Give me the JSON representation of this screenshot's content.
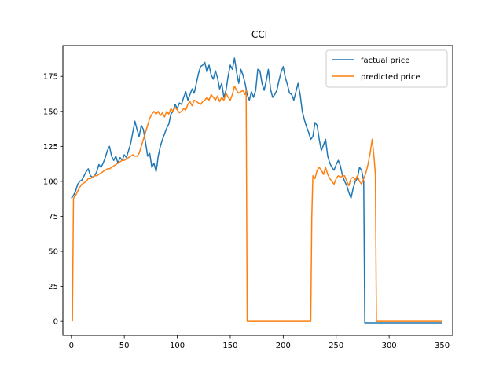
{
  "chart_data": {
    "type": "line",
    "title": "CCI",
    "xlabel": "",
    "ylabel": "",
    "xlim": [
      -8,
      360
    ],
    "ylim": [
      -10,
      197
    ],
    "xticks": [
      0,
      50,
      100,
      150,
      200,
      250,
      300,
      350
    ],
    "yticks": [
      0,
      25,
      50,
      75,
      100,
      125,
      150,
      175
    ],
    "grid": false,
    "legend_position": "upper right",
    "series": [
      {
        "name": "factual price",
        "color": "#1f77b4",
        "points": [
          [
            0,
            88
          ],
          [
            2,
            90
          ],
          [
            4,
            93
          ],
          [
            6,
            98
          ],
          [
            8,
            100
          ],
          [
            10,
            101
          ],
          [
            12,
            104
          ],
          [
            14,
            107
          ],
          [
            16,
            109
          ],
          [
            18,
            104
          ],
          [
            20,
            103
          ],
          [
            22,
            104
          ],
          [
            24,
            107
          ],
          [
            26,
            112
          ],
          [
            28,
            110
          ],
          [
            30,
            113
          ],
          [
            32,
            117
          ],
          [
            34,
            122
          ],
          [
            36,
            125
          ],
          [
            38,
            118
          ],
          [
            40,
            115
          ],
          [
            42,
            118
          ],
          [
            44,
            113
          ],
          [
            46,
            117
          ],
          [
            48,
            115
          ],
          [
            50,
            119
          ],
          [
            52,
            117
          ],
          [
            54,
            122
          ],
          [
            56,
            127
          ],
          [
            58,
            135
          ],
          [
            60,
            143
          ],
          [
            62,
            137
          ],
          [
            64,
            132
          ],
          [
            66,
            140
          ],
          [
            68,
            137
          ],
          [
            70,
            128
          ],
          [
            72,
            118
          ],
          [
            74,
            120
          ],
          [
            76,
            110
          ],
          [
            78,
            113
          ],
          [
            80,
            107
          ],
          [
            81,
            112
          ],
          [
            82,
            118
          ],
          [
            84,
            125
          ],
          [
            86,
            130
          ],
          [
            88,
            134
          ],
          [
            90,
            138
          ],
          [
            92,
            141
          ],
          [
            94,
            148
          ],
          [
            96,
            150
          ],
          [
            98,
            155
          ],
          [
            100,
            152
          ],
          [
            102,
            156
          ],
          [
            104,
            155
          ],
          [
            106,
            160
          ],
          [
            108,
            164
          ],
          [
            110,
            158
          ],
          [
            112,
            162
          ],
          [
            114,
            166
          ],
          [
            116,
            163
          ],
          [
            118,
            170
          ],
          [
            120,
            177
          ],
          [
            122,
            182
          ],
          [
            124,
            183
          ],
          [
            126,
            185
          ],
          [
            128,
            178
          ],
          [
            130,
            183
          ],
          [
            132,
            176
          ],
          [
            134,
            173
          ],
          [
            136,
            179
          ],
          [
            138,
            174
          ],
          [
            140,
            166
          ],
          [
            142,
            170
          ],
          [
            144,
            160
          ],
          [
            146,
            165
          ],
          [
            148,
            175
          ],
          [
            150,
            183
          ],
          [
            152,
            180
          ],
          [
            154,
            188
          ],
          [
            156,
            178
          ],
          [
            158,
            170
          ],
          [
            160,
            180
          ],
          [
            162,
            176
          ],
          [
            164,
            170
          ],
          [
            166,
            162
          ],
          [
            168,
            158
          ],
          [
            170,
            164
          ],
          [
            172,
            160
          ],
          [
            174,
            165
          ],
          [
            176,
            180
          ],
          [
            178,
            179
          ],
          [
            180,
            170
          ],
          [
            182,
            165
          ],
          [
            184,
            172
          ],
          [
            186,
            180
          ],
          [
            188,
            166
          ],
          [
            190,
            160
          ],
          [
            192,
            162
          ],
          [
            194,
            165
          ],
          [
            196,
            172
          ],
          [
            198,
            178
          ],
          [
            200,
            182
          ],
          [
            202,
            174
          ],
          [
            204,
            169
          ],
          [
            206,
            163
          ],
          [
            208,
            162
          ],
          [
            210,
            158
          ],
          [
            212,
            164
          ],
          [
            214,
            170
          ],
          [
            216,
            162
          ],
          [
            218,
            150
          ],
          [
            220,
            144
          ],
          [
            222,
            139
          ],
          [
            224,
            135
          ],
          [
            226,
            130
          ],
          [
            228,
            132
          ],
          [
            230,
            142
          ],
          [
            232,
            140
          ],
          [
            234,
            130
          ],
          [
            236,
            122
          ],
          [
            238,
            126
          ],
          [
            240,
            130
          ],
          [
            242,
            118
          ],
          [
            244,
            113
          ],
          [
            246,
            110
          ],
          [
            248,
            108
          ],
          [
            250,
            112
          ],
          [
            252,
            115
          ],
          [
            254,
            111
          ],
          [
            256,
            104
          ],
          [
            258,
            100
          ],
          [
            260,
            97
          ],
          [
            262,
            92
          ],
          [
            264,
            88
          ],
          [
            266,
            95
          ],
          [
            268,
            100
          ],
          [
            270,
            102
          ],
          [
            272,
            110
          ],
          [
            274,
            108
          ],
          [
            276,
            100
          ],
          [
            277,
            -1
          ],
          [
            350,
            -1
          ]
        ]
      },
      {
        "name": "predicted price",
        "color": "#ff7f0e",
        "points": [
          [
            1,
            0
          ],
          [
            2,
            88
          ],
          [
            4,
            90
          ],
          [
            6,
            93
          ],
          [
            8,
            96
          ],
          [
            10,
            98
          ],
          [
            12,
            99
          ],
          [
            14,
            100
          ],
          [
            16,
            102
          ],
          [
            18,
            102
          ],
          [
            20,
            103
          ],
          [
            22,
            104
          ],
          [
            24,
            104
          ],
          [
            26,
            105
          ],
          [
            28,
            106
          ],
          [
            30,
            107
          ],
          [
            32,
            108
          ],
          [
            34,
            109
          ],
          [
            36,
            109
          ],
          [
            38,
            110
          ],
          [
            40,
            111
          ],
          [
            42,
            112
          ],
          [
            44,
            113
          ],
          [
            46,
            114
          ],
          [
            48,
            115
          ],
          [
            50,
            115
          ],
          [
            52,
            116
          ],
          [
            54,
            117
          ],
          [
            56,
            118
          ],
          [
            58,
            119
          ],
          [
            60,
            118
          ],
          [
            62,
            118
          ],
          [
            64,
            120
          ],
          [
            66,
            125
          ],
          [
            68,
            130
          ],
          [
            70,
            135
          ],
          [
            72,
            140
          ],
          [
            74,
            145
          ],
          [
            76,
            148
          ],
          [
            78,
            150
          ],
          [
            80,
            148
          ],
          [
            82,
            150
          ],
          [
            84,
            147
          ],
          [
            86,
            149
          ],
          [
            88,
            146
          ],
          [
            90,
            150
          ],
          [
            92,
            148
          ],
          [
            94,
            152
          ],
          [
            96,
            150
          ],
          [
            98,
            153
          ],
          [
            100,
            151
          ],
          [
            102,
            149
          ],
          [
            104,
            150
          ],
          [
            106,
            152
          ],
          [
            108,
            151
          ],
          [
            110,
            155
          ],
          [
            112,
            157
          ],
          [
            114,
            154
          ],
          [
            116,
            158
          ],
          [
            118,
            157
          ],
          [
            120,
            156
          ],
          [
            122,
            155
          ],
          [
            124,
            157
          ],
          [
            126,
            158
          ],
          [
            128,
            160
          ],
          [
            130,
            158
          ],
          [
            132,
            162
          ],
          [
            134,
            160
          ],
          [
            136,
            158
          ],
          [
            138,
            161
          ],
          [
            140,
            157
          ],
          [
            142,
            160
          ],
          [
            144,
            158
          ],
          [
            146,
            163
          ],
          [
            148,
            160
          ],
          [
            150,
            158
          ],
          [
            152,
            162
          ],
          [
            154,
            168
          ],
          [
            156,
            165
          ],
          [
            158,
            163
          ],
          [
            160,
            164
          ],
          [
            162,
            165
          ],
          [
            164,
            162
          ],
          [
            165,
            165
          ],
          [
            166,
            0
          ],
          [
            226,
            0
          ],
          [
            227,
            75
          ],
          [
            228,
            104
          ],
          [
            230,
            102
          ],
          [
            232,
            108
          ],
          [
            234,
            110
          ],
          [
            236,
            108
          ],
          [
            238,
            105
          ],
          [
            240,
            110
          ],
          [
            242,
            105
          ],
          [
            244,
            102
          ],
          [
            246,
            100
          ],
          [
            248,
            98
          ],
          [
            250,
            102
          ],
          [
            252,
            104
          ],
          [
            254,
            103
          ],
          [
            256,
            104
          ],
          [
            258,
            104
          ],
          [
            260,
            100
          ],
          [
            262,
            97
          ],
          [
            264,
            102
          ],
          [
            266,
            103
          ],
          [
            268,
            101
          ],
          [
            270,
            104
          ],
          [
            272,
            100
          ],
          [
            274,
            98
          ],
          [
            276,
            102
          ],
          [
            278,
            106
          ],
          [
            280,
            112
          ],
          [
            282,
            120
          ],
          [
            284,
            130
          ],
          [
            285,
            123
          ],
          [
            286,
            115
          ],
          [
            287,
            105
          ],
          [
            288,
            0
          ],
          [
            350,
            0
          ]
        ]
      }
    ]
  }
}
